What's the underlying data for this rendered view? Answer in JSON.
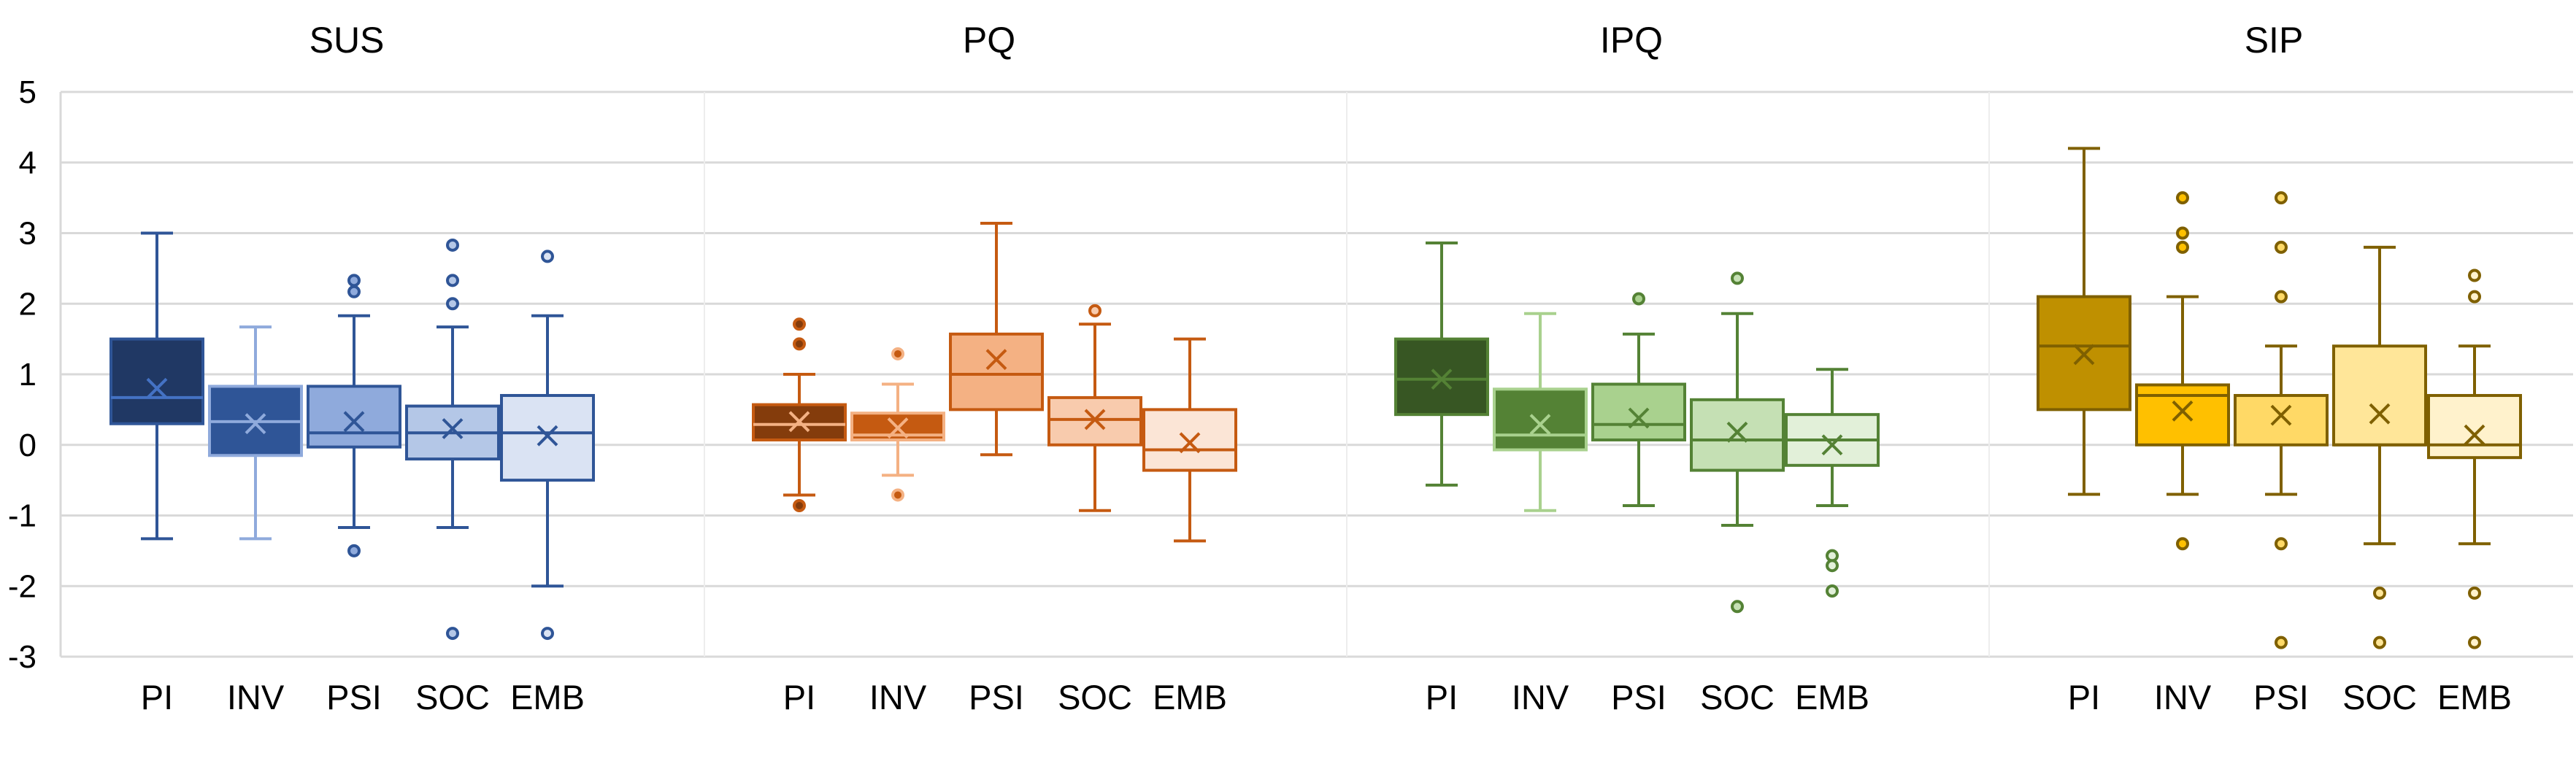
{
  "chart_data": {
    "type": "box",
    "y_axis": {
      "ylim": [
        -3,
        5
      ],
      "ticks": [
        "5",
        "4",
        "3",
        "2",
        "1",
        "0",
        "-1",
        "-2",
        "-3"
      ],
      "grid": true
    },
    "legend": "none",
    "panels": [
      {
        "title": "SUS",
        "categories": [
          "PI",
          "INV",
          "PSI",
          "SOC",
          "EMB"
        ],
        "boxes": [
          {
            "label": "PI",
            "fill": "#203864",
            "stroke": "#2F5597",
            "whisker": "#2F5597",
            "mean_color": "#4472C4",
            "min": -1.33,
            "q1": 0.3,
            "median": 0.67,
            "q3": 1.5,
            "max": 3.0,
            "mean": 0.8,
            "outliers": []
          },
          {
            "label": "INV",
            "fill": "#2F5597",
            "stroke": "#8FAADC",
            "whisker": "#8FAADC",
            "mean_color": "#8FAADC",
            "min": -1.33,
            "q1": -0.15,
            "median": 0.33,
            "q3": 0.83,
            "max": 1.67,
            "mean": 0.3,
            "outliers": []
          },
          {
            "label": "PSI",
            "fill": "#8FAADC",
            "stroke": "#2F5597",
            "whisker": "#2F5597",
            "mean_color": "#2F5597",
            "min": -1.17,
            "q1": -0.03,
            "median": 0.17,
            "q3": 0.83,
            "max": 1.83,
            "mean": 0.33,
            "outliers": [
              2.33,
              2.17,
              -1.5
            ]
          },
          {
            "label": "SOC",
            "fill": "#B4C7E7",
            "stroke": "#2F5597",
            "whisker": "#2F5597",
            "mean_color": "#2F5597",
            "min": -1.17,
            "q1": -0.2,
            "median": 0.17,
            "q3": 0.55,
            "max": 1.67,
            "mean": 0.23,
            "outliers": [
              2.83,
              2.33,
              2.0,
              -2.67
            ]
          },
          {
            "label": "EMB",
            "fill": "#DAE3F3",
            "stroke": "#2F5597",
            "whisker": "#2F5597",
            "mean_color": "#2F5597",
            "min": -2.0,
            "q1": -0.5,
            "median": 0.17,
            "q3": 0.7,
            "max": 1.83,
            "mean": 0.13,
            "outliers": [
              2.67,
              -2.67
            ]
          }
        ]
      },
      {
        "title": "PQ",
        "categories": [
          "PI",
          "INV",
          "PSI",
          "SOC",
          "EMB"
        ],
        "boxes": [
          {
            "label": "PI",
            "fill": "#843C0C",
            "stroke": "#C55A11",
            "whisker": "#C55A11",
            "mean_color": "#F4B183",
            "min": -0.71,
            "q1": 0.07,
            "median": 0.29,
            "q3": 0.57,
            "max": 1.0,
            "mean": 0.33,
            "outliers": [
              1.71,
              1.43,
              -0.86
            ]
          },
          {
            "label": "INV",
            "fill": "#C55A11",
            "stroke": "#F4B183",
            "whisker": "#F4B183",
            "mean_color": "#F4B183",
            "min": -0.43,
            "q1": 0.07,
            "median": 0.14,
            "q3": 0.45,
            "max": 0.86,
            "mean": 0.24,
            "outliers": [
              1.29,
              -0.71
            ]
          },
          {
            "label": "PSI",
            "fill": "#F4B183",
            "stroke": "#C55A11",
            "whisker": "#C55A11",
            "mean_color": "#C55A11",
            "min": -0.14,
            "q1": 0.5,
            "median": 1.0,
            "q3": 1.57,
            "max": 3.14,
            "mean": 1.21,
            "outliers": []
          },
          {
            "label": "SOC",
            "fill": "#F8CBAD",
            "stroke": "#C55A11",
            "whisker": "#C55A11",
            "mean_color": "#C55A11",
            "min": -0.93,
            "q1": 0.0,
            "median": 0.36,
            "q3": 0.67,
            "max": 1.71,
            "mean": 0.36,
            "outliers": [
              1.9
            ]
          },
          {
            "label": "EMB",
            "fill": "#FBE5D6",
            "stroke": "#C55A11",
            "whisker": "#C55A11",
            "mean_color": "#C55A11",
            "min": -1.36,
            "q1": -0.36,
            "median": -0.07,
            "q3": 0.5,
            "max": 1.5,
            "mean": 0.03,
            "outliers": []
          }
        ]
      },
      {
        "title": "IPQ",
        "categories": [
          "PI",
          "INV",
          "PSI",
          "SOC",
          "EMB"
        ],
        "boxes": [
          {
            "label": "PI",
            "fill": "#375623",
            "stroke": "#548235",
            "whisker": "#548235",
            "mean_color": "#548235",
            "min": -0.57,
            "q1": 0.43,
            "median": 0.93,
            "q3": 1.5,
            "max": 2.86,
            "mean": 0.93,
            "outliers": []
          },
          {
            "label": "INV",
            "fill": "#548235",
            "stroke": "#A9D18E",
            "whisker": "#A9D18E",
            "mean_color": "#A9D18E",
            "min": -0.93,
            "q1": -0.07,
            "median": 0.14,
            "q3": 0.79,
            "max": 1.86,
            "mean": 0.29,
            "outliers": []
          },
          {
            "label": "PSI",
            "fill": "#A9D18E",
            "stroke": "#548235",
            "whisker": "#548235",
            "mean_color": "#548235",
            "min": -0.86,
            "q1": 0.07,
            "median": 0.29,
            "q3": 0.86,
            "max": 1.57,
            "mean": 0.38,
            "outliers": [
              2.07
            ]
          },
          {
            "label": "SOC",
            "fill": "#C5E0B4",
            "stroke": "#548235",
            "whisker": "#548235",
            "mean_color": "#548235",
            "min": -1.14,
            "q1": -0.36,
            "median": 0.07,
            "q3": 0.64,
            "max": 1.86,
            "mean": 0.18,
            "outliers": [
              2.36,
              -2.29
            ]
          },
          {
            "label": "EMB",
            "fill": "#E2F0D9",
            "stroke": "#548235",
            "whisker": "#548235",
            "mean_color": "#548235",
            "min": -0.86,
            "q1": -0.29,
            "median": 0.07,
            "q3": 0.43,
            "max": 1.07,
            "mean": 0.0,
            "outliers": [
              -1.57,
              -1.71,
              -2.07
            ]
          }
        ]
      },
      {
        "title": "SIP",
        "categories": [
          "PI",
          "INV",
          "PSI",
          "SOC",
          "EMB"
        ],
        "boxes": [
          {
            "label": "PI",
            "fill": "#BF9000",
            "stroke": "#7F6000",
            "whisker": "#7F6000",
            "mean_color": "#7F6000",
            "min": -0.7,
            "q1": 0.5,
            "median": 1.4,
            "q3": 2.1,
            "max": 4.2,
            "mean": 1.28,
            "outliers": []
          },
          {
            "label": "INV",
            "fill": "#FFC000",
            "stroke": "#7F6000",
            "whisker": "#7F6000",
            "mean_color": "#7F6000",
            "min": -0.7,
            "q1": 0.0,
            "median": 0.7,
            "q3": 0.85,
            "max": 2.1,
            "mean": 0.48,
            "outliers": [
              3.5,
              3.0,
              2.8,
              -1.4
            ]
          },
          {
            "label": "PSI",
            "fill": "#FFD966",
            "stroke": "#7F6000",
            "whisker": "#7F6000",
            "mean_color": "#7F6000",
            "min": -0.7,
            "q1": 0.0,
            "median": 0.7,
            "q3": 0.7,
            "max": 1.4,
            "mean": 0.42,
            "outliers": [
              3.5,
              2.8,
              2.1,
              -1.4,
              -2.8
            ]
          },
          {
            "label": "SOC",
            "fill": "#FFE699",
            "stroke": "#7F6000",
            "whisker": "#7F6000",
            "mean_color": "#7F6000",
            "min": -1.4,
            "q1": 0.0,
            "median": 0.0,
            "q3": 1.4,
            "max": 2.8,
            "mean": 0.44,
            "outliers": [
              -2.1,
              -2.8
            ]
          },
          {
            "label": "EMB",
            "fill": "#FFF2CC",
            "stroke": "#7F6000",
            "whisker": "#7F6000",
            "mean_color": "#7F6000",
            "min": -1.4,
            "q1": -0.18,
            "median": 0.0,
            "q3": 0.7,
            "max": 1.4,
            "mean": 0.14,
            "outliers": [
              2.4,
              2.1,
              -2.1,
              -2.8
            ]
          }
        ]
      }
    ]
  }
}
